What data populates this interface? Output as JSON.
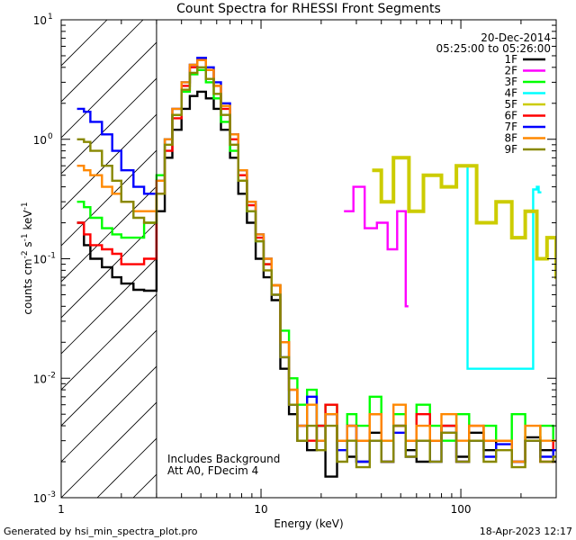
{
  "chart_data": {
    "type": "line",
    "title": "Count Spectra for RHESSI Front Segments",
    "xlabel": "Energy (keV)",
    "ylabel": "counts cm",
    "ylabel_parts": [
      "counts cm",
      "-2",
      " s",
      "-1",
      " keV",
      "-1"
    ],
    "x_scale": "log",
    "y_scale": "log",
    "xlim": [
      1,
      300
    ],
    "ylim": [
      0.001,
      10
    ],
    "x_tick_labels": [
      {
        "value": 1,
        "label": "1"
      },
      {
        "value": 10,
        "label": "10"
      },
      {
        "value": 100,
        "label": "100"
      }
    ],
    "y_tick_labels": [
      {
        "exp": -3,
        "label": "10",
        "sup": "-3"
      },
      {
        "exp": -2,
        "label": "10",
        "sup": "-2"
      },
      {
        "exp": -1,
        "label": "10",
        "sup": "-1"
      },
      {
        "exp": 0,
        "label": "10",
        "sup": "0"
      },
      {
        "exp": 1,
        "label": "10",
        "sup": "1"
      }
    ],
    "date": "20-Dec-2014",
    "time_range": "05:25:00 to 05:26:00",
    "annotation_lines": [
      "Includes Background",
      "Att A0, FDecim 4"
    ],
    "attenuator_cutoff_kev": 3,
    "legend_position": "top-right",
    "legend": [
      {
        "name": "1F",
        "color": "#000000"
      },
      {
        "name": "2F",
        "color": "#ff00ff"
      },
      {
        "name": "3F",
        "color": "#00ff00"
      },
      {
        "name": "4F",
        "color": "#00ffff"
      },
      {
        "name": "5F",
        "color": "#cccc00"
      },
      {
        "name": "6F",
        "color": "#ff0000"
      },
      {
        "name": "7F",
        "color": "#0000ff"
      },
      {
        "name": "8F",
        "color": "#ff8800"
      },
      {
        "name": "9F",
        "color": "#888800"
      }
    ],
    "series": [
      {
        "name": "1F",
        "color": "#000000",
        "x": [
          1.2,
          1.3,
          1.4,
          1.6,
          1.8,
          2.0,
          2.3,
          2.6,
          3.0,
          3.3,
          3.6,
          4.0,
          4.4,
          4.8,
          5.3,
          5.8,
          6.3,
          7.0,
          7.7,
          8.5,
          9.4,
          10.3,
          11.3,
          12.5,
          13.8,
          15.2,
          17,
          19,
          21,
          24,
          27,
          30,
          35,
          40,
          46,
          53,
          60,
          70,
          80,
          95,
          110,
          130,
          150,
          180,
          210,
          250,
          290
        ],
        "y": [
          0.2,
          0.13,
          0.1,
          0.085,
          0.07,
          0.062,
          0.055,
          0.054,
          0.25,
          0.7,
          1.2,
          1.8,
          2.3,
          2.5,
          2.2,
          1.8,
          1.2,
          0.7,
          0.35,
          0.2,
          0.1,
          0.07,
          0.045,
          0.012,
          0.005,
          0.003,
          0.0025,
          0.004,
          0.0015,
          0.003,
          0.0022,
          0.002,
          0.0035,
          0.002,
          0.004,
          0.0025,
          0.002,
          0.003,
          0.004,
          0.0022,
          0.0035,
          0.0025,
          0.003,
          0.002,
          0.0032,
          0.0025,
          0.002
        ]
      },
      {
        "name": "2F",
        "color": "#ff00ff",
        "x": [
          26,
          29,
          33,
          38,
          43,
          48,
          53
        ],
        "y": [
          0.25,
          0.4,
          0.18,
          0.2,
          0.12,
          0.25,
          0.04
        ]
      },
      {
        "name": "3F",
        "color": "#00ff00",
        "x": [
          1.2,
          1.3,
          1.4,
          1.6,
          1.8,
          2.0,
          2.3,
          2.6,
          3.0,
          3.3,
          3.6,
          4.0,
          4.4,
          4.8,
          5.3,
          5.8,
          6.3,
          7.0,
          7.7,
          8.5,
          9.4,
          10.3,
          11.3,
          12.5,
          13.8,
          15.2,
          17,
          19,
          21,
          24,
          27,
          30,
          35,
          40,
          46,
          53,
          60,
          70,
          80,
          95,
          110,
          130,
          150,
          180,
          210,
          250,
          290
        ],
        "y": [
          0.3,
          0.27,
          0.22,
          0.18,
          0.16,
          0.15,
          0.15,
          0.2,
          0.5,
          1.0,
          1.6,
          2.5,
          3.5,
          3.8,
          3.0,
          2.2,
          1.4,
          0.8,
          0.45,
          0.25,
          0.14,
          0.09,
          0.06,
          0.025,
          0.01,
          0.006,
          0.008,
          0.004,
          0.006,
          0.003,
          0.005,
          0.004,
          0.007,
          0.003,
          0.005,
          0.003,
          0.006,
          0.004,
          0.003,
          0.005,
          0.003,
          0.004,
          0.003,
          0.005,
          0.003,
          0.004,
          0.003
        ]
      },
      {
        "name": "4F",
        "color": "#00ffff",
        "x": [
          105,
          108,
          230,
          240,
          245
        ],
        "y": [
          0.6,
          0.012,
          0.38,
          0.4,
          0.36
        ]
      },
      {
        "name": "5F",
        "color": "#cccc00",
        "x": [
          36,
          40,
          46,
          55,
          65,
          80,
          95,
          120,
          150,
          180,
          210,
          240,
          270,
          300
        ],
        "y": [
          0.55,
          0.3,
          0.7,
          0.25,
          0.5,
          0.4,
          0.6,
          0.2,
          0.3,
          0.15,
          0.25,
          0.1,
          0.15,
          0.07
        ]
      },
      {
        "name": "6F",
        "color": "#ff0000",
        "x": [
          1.2,
          1.3,
          1.4,
          1.6,
          1.8,
          2.0,
          2.3,
          2.6,
          3.0,
          3.3,
          3.6,
          4.0,
          4.4,
          4.8,
          5.3,
          5.8,
          6.3,
          7.0,
          7.7,
          8.5,
          9.4,
          10.3,
          11.3,
          12.5,
          13.8,
          15.2,
          17,
          19,
          21,
          24,
          27,
          30,
          35,
          40,
          46,
          53,
          60,
          70,
          80,
          95,
          110,
          130,
          150,
          180,
          210,
          250,
          290
        ],
        "y": [
          0.2,
          0.16,
          0.13,
          0.12,
          0.11,
          0.09,
          0.09,
          0.1,
          0.35,
          0.8,
          1.5,
          2.8,
          4.0,
          4.6,
          3.8,
          2.8,
          1.8,
          1.0,
          0.5,
          0.28,
          0.15,
          0.09,
          0.06,
          0.02,
          0.008,
          0.004,
          0.003,
          0.004,
          0.006,
          0.003,
          0.004,
          0.003,
          0.005,
          0.002,
          0.004,
          0.003,
          0.005,
          0.003,
          0.004,
          0.002,
          0.004,
          0.003,
          0.003,
          0.002,
          0.003,
          0.002,
          0.003
        ]
      },
      {
        "name": "7F",
        "color": "#0000ff",
        "x": [
          1.2,
          1.3,
          1.4,
          1.6,
          1.8,
          2.0,
          2.3,
          2.6,
          3.0,
          3.3,
          3.6,
          4.0,
          4.4,
          4.8,
          5.3,
          5.8,
          6.3,
          7.0,
          7.7,
          8.5,
          9.4,
          10.3,
          11.3,
          12.5,
          13.8,
          15.2,
          17,
          19,
          21,
          24,
          27,
          30,
          35,
          40,
          46,
          53,
          60,
          70,
          80,
          95,
          110,
          130,
          150,
          180,
          210,
          250,
          290
        ],
        "y": [
          1.8,
          1.7,
          1.4,
          1.1,
          0.8,
          0.55,
          0.4,
          0.35,
          0.45,
          1.0,
          1.8,
          3.0,
          4.2,
          4.8,
          4.0,
          3.0,
          2.0,
          1.1,
          0.55,
          0.3,
          0.16,
          0.1,
          0.05,
          0.015,
          0.006,
          0.004,
          0.007,
          0.003,
          0.005,
          0.0025,
          0.004,
          0.002,
          0.003,
          0.002,
          0.0035,
          0.0022,
          0.003,
          0.002,
          0.0035,
          0.002,
          0.003,
          0.0022,
          0.0028,
          0.002,
          0.003,
          0.0022,
          0.0025
        ]
      },
      {
        "name": "8F",
        "color": "#ff8800",
        "x": [
          1.2,
          1.3,
          1.4,
          1.6,
          1.8,
          2.0,
          2.3,
          2.6,
          3.0,
          3.3,
          3.6,
          4.0,
          4.4,
          4.8,
          5.3,
          5.8,
          6.3,
          7.0,
          7.7,
          8.5,
          9.4,
          10.3,
          11.3,
          12.5,
          13.8,
          15.2,
          17,
          19,
          21,
          24,
          27,
          30,
          35,
          40,
          46,
          53,
          60,
          70,
          80,
          95,
          110,
          130,
          150,
          180,
          210,
          250,
          290
        ],
        "y": [
          0.6,
          0.55,
          0.5,
          0.4,
          0.35,
          0.3,
          0.25,
          0.25,
          0.45,
          1.0,
          1.8,
          3.0,
          4.2,
          4.6,
          3.8,
          2.8,
          1.9,
          1.1,
          0.55,
          0.3,
          0.16,
          0.1,
          0.06,
          0.02,
          0.008,
          0.004,
          0.006,
          0.003,
          0.005,
          0.003,
          0.004,
          0.003,
          0.005,
          0.003,
          0.006,
          0.003,
          0.004,
          0.003,
          0.005,
          0.003,
          0.004,
          0.003,
          0.003,
          0.002,
          0.004,
          0.003,
          0.003
        ]
      },
      {
        "name": "9F",
        "color": "#888800",
        "x": [
          1.2,
          1.3,
          1.4,
          1.6,
          1.8,
          2.0,
          2.3,
          2.6,
          3.0,
          3.3,
          3.6,
          4.0,
          4.4,
          4.8,
          5.3,
          5.8,
          6.3,
          7.0,
          7.7,
          8.5,
          9.4,
          10.3,
          11.3,
          12.5,
          13.8,
          15.2,
          17,
          19,
          21,
          24,
          27,
          30,
          35,
          40,
          46,
          53,
          60,
          70,
          80,
          95,
          110,
          130,
          150,
          180,
          210,
          250,
          290
        ],
        "y": [
          1.0,
          0.95,
          0.8,
          0.6,
          0.45,
          0.3,
          0.22,
          0.2,
          0.35,
          0.9,
          1.6,
          2.6,
          3.6,
          4.0,
          3.2,
          2.4,
          1.6,
          0.9,
          0.45,
          0.25,
          0.14,
          0.08,
          0.05,
          0.015,
          0.006,
          0.003,
          0.004,
          0.0025,
          0.004,
          0.002,
          0.003,
          0.0018,
          0.003,
          0.002,
          0.004,
          0.0022,
          0.003,
          0.002,
          0.0035,
          0.002,
          0.003,
          0.002,
          0.0025,
          0.0018,
          0.003,
          0.002,
          0.0022
        ]
      }
    ]
  },
  "footer": {
    "generated_by": "Generated by hsi_min_spectra_plot.pro",
    "timestamp": "18-Apr-2023 12:17"
  }
}
